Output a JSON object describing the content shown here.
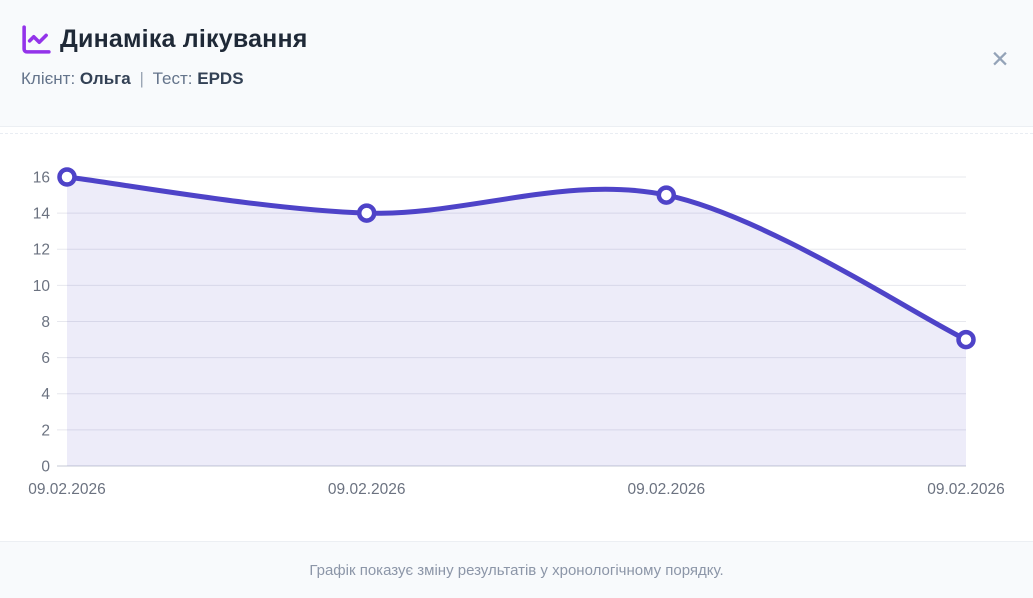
{
  "header": {
    "title": "Динаміка лікування",
    "client_label": "Клієнт:",
    "client_name": "Ольга",
    "separator": "|",
    "test_label": "Тест:",
    "test_name": "EPDS",
    "close_icon": "✕"
  },
  "colors": {
    "icon_purple": "#9333ea",
    "header_bg": "#f8fafc",
    "title_text": "#1f2937",
    "muted_text": "#64748b",
    "footer_text": "#8c96a8"
  },
  "chart_data": {
    "type": "area",
    "title": "",
    "xlabel": "",
    "ylabel": "",
    "categories": [
      "09.02.2026",
      "09.02.2026",
      "09.02.2026",
      "09.02.2026"
    ],
    "values": [
      16,
      14,
      15,
      7
    ],
    "ylim": [
      0,
      16
    ],
    "ytick_step": 2,
    "grid": "horizontal",
    "legend": "none",
    "line_color": "#4e43c8",
    "fill_color": "rgba(78,67,200,0.10)",
    "marker_fill": "#ffffff",
    "marker_stroke": "#4e43c8",
    "grid_color": "#e7e8ee",
    "axis_line_color": "#d9dce3",
    "tick_text_color": "#6b7280"
  },
  "footer": {
    "caption": "Графік показує зміну результатів у хронологічному порядку."
  }
}
